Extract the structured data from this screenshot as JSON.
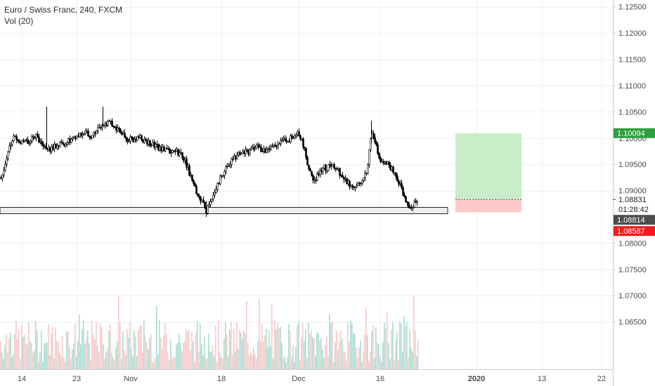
{
  "legend": {
    "symbol_line": "Euro / Swiss Franc, 240, FXCM",
    "volume_line": "Vol (20)"
  },
  "colors": {
    "grid": "#edf0f3",
    "axis_line": "#c9ccd1",
    "axis_text": "#4a4a4a",
    "candle": "#000000",
    "volume_up": "#a8dcd2",
    "volume_down": "#f6c9c9",
    "profit_zone": "#c9ecc9",
    "loss_zone": "#fbc9c9",
    "support_box_fill": "#eceef1",
    "support_box_stroke": "#222222",
    "target_badge": "#2e9e3e",
    "current_badge": "#4d4d4d",
    "stop_badge": "#ef1c1c"
  },
  "chart_data": {
    "type": "candlestick",
    "title": "Euro / Swiss Franc, 240, FXCM",
    "indicator": "Vol (20)",
    "ylim": [
      1.06,
      1.1255
    ],
    "y_ticks": [
      "1.12500",
      "1.12000",
      "1.11500",
      "1.11000",
      "1.10500",
      "1.10000",
      "1.09500",
      "1.09000",
      "1.08000",
      "1.07500",
      "1.07000",
      "1.06500"
    ],
    "x_ticks": [
      "14",
      "23",
      "Nov",
      "18",
      "Dec",
      "16",
      "2020",
      "13",
      "22"
    ],
    "price_path": [
      [
        0,
        1.0925
      ],
      [
        5,
        1.094
      ],
      [
        10,
        1.097
      ],
      [
        15,
        1.099
      ],
      [
        20,
        1.1005
      ],
      [
        30,
        1.099
      ],
      [
        40,
        1.0995
      ],
      [
        50,
        1.1005
      ],
      [
        60,
        1.0985
      ],
      [
        70,
        1.098
      ],
      [
        80,
        1.0985
      ],
      [
        90,
        1.099
      ],
      [
        100,
        1.0995
      ],
      [
        110,
        1.1
      ],
      [
        120,
        1.101
      ],
      [
        130,
        1.1005
      ],
      [
        140,
        1.102
      ],
      [
        150,
        1.103
      ],
      [
        160,
        1.1025
      ],
      [
        170,
        1.1015
      ],
      [
        180,
        1.1
      ],
      [
        190,
        1.0995
      ],
      [
        200,
        1.1
      ],
      [
        210,
        1.099
      ],
      [
        220,
        1.0985
      ],
      [
        230,
        1.098
      ],
      [
        240,
        1.0975
      ],
      [
        250,
        1.0975
      ],
      [
        260,
        1.0965
      ],
      [
        265,
        1.095
      ],
      [
        270,
        1.093
      ],
      [
        275,
        1.091
      ],
      [
        280,
        1.0895
      ],
      [
        285,
        1.0885
      ],
      [
        290,
        1.0875
      ],
      [
        293,
        1.086
      ],
      [
        297,
        1.0875
      ],
      [
        302,
        1.089
      ],
      [
        308,
        1.091
      ],
      [
        315,
        1.093
      ],
      [
        325,
        1.095
      ],
      [
        335,
        1.0965
      ],
      [
        345,
        1.097
      ],
      [
        355,
        1.0975
      ],
      [
        365,
        1.0985
      ],
      [
        375,
        1.0975
      ],
      [
        385,
        1.0985
      ],
      [
        395,
        1.099
      ],
      [
        405,
        1.0995
      ],
      [
        415,
        1.1
      ],
      [
        423,
        1.1015
      ],
      [
        430,
        1.0995
      ],
      [
        435,
        1.0965
      ],
      [
        440,
        1.0935
      ],
      [
        445,
        1.092
      ],
      [
        450,
        1.0925
      ],
      [
        455,
        1.094
      ],
      [
        460,
        1.0945
      ],
      [
        465,
        1.094
      ],
      [
        470,
        1.095
      ],
      [
        475,
        1.0945
      ],
      [
        480,
        1.094
      ],
      [
        485,
        1.093
      ],
      [
        490,
        1.092
      ],
      [
        495,
        1.0915
      ],
      [
        500,
        1.091
      ],
      [
        505,
        1.0908
      ],
      [
        510,
        1.0915
      ],
      [
        515,
        1.092
      ],
      [
        520,
        1.093
      ],
      [
        524,
        1.096
      ],
      [
        528,
        1.101
      ],
      [
        532,
        1.1
      ],
      [
        536,
        1.0975
      ],
      [
        540,
        1.0955
      ],
      [
        545,
        1.095
      ],
      [
        550,
        1.0955
      ],
      [
        555,
        1.0945
      ],
      [
        560,
        1.0935
      ],
      [
        565,
        1.092
      ],
      [
        570,
        1.0905
      ],
      [
        575,
        1.089
      ],
      [
        580,
        1.0875
      ],
      [
        585,
        1.0868
      ],
      [
        590,
        1.088
      ],
      [
        594,
        1.087
      ]
    ],
    "volume_range": [
      0,
      100
    ],
    "long_position": {
      "target": 1.10094,
      "entry": 1.08831,
      "stop": 1.08587
    },
    "support_zone": {
      "top": 1.0868,
      "bottom": 1.0856
    },
    "price_labels": {
      "target": "1.10094",
      "entry": "1.08831",
      "countdown": "01:28:42",
      "current": "1.08814",
      "stop": "1.08587"
    }
  }
}
